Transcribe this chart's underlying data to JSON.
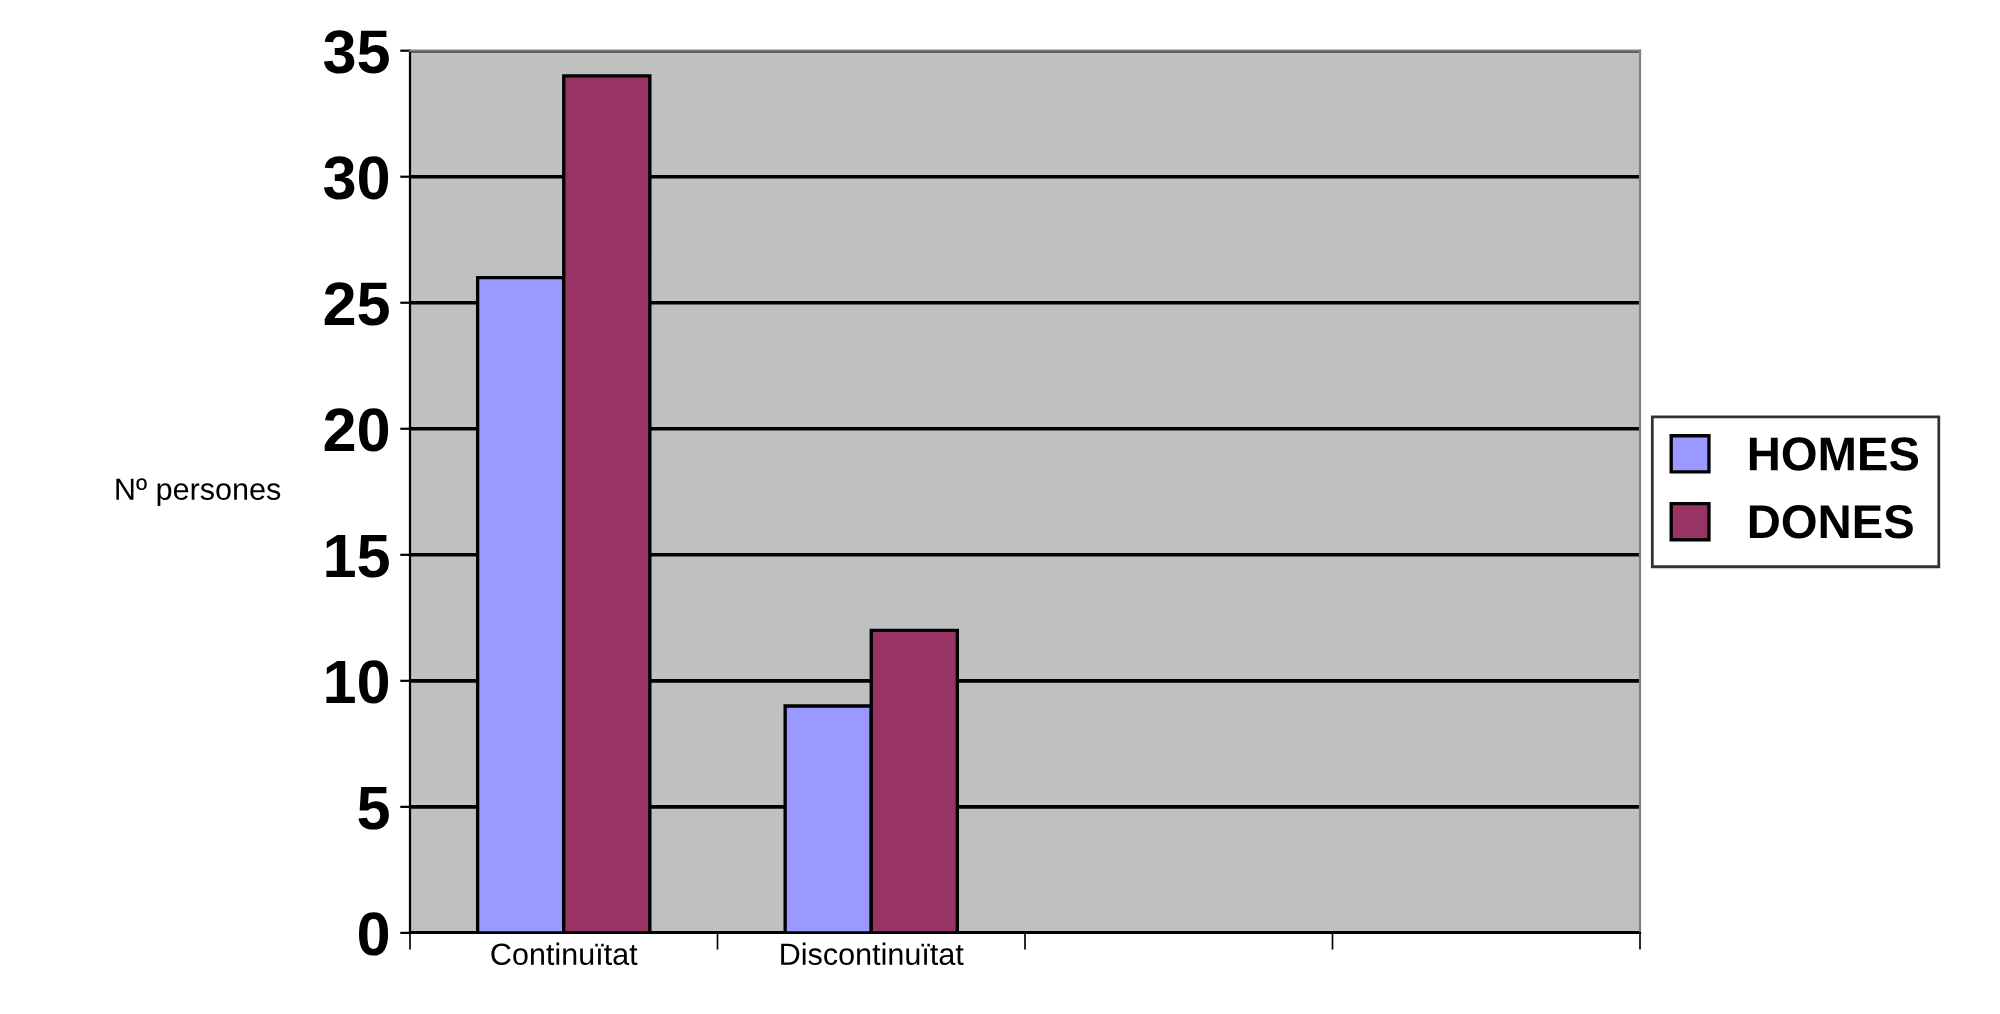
{
  "chart_data": {
    "type": "bar",
    "ylabel": "Nº persones",
    "categories": [
      "Continuïtat",
      "Discontinuïtat",
      null,
      null
    ],
    "series": [
      {
        "name": "HOMES",
        "color": "#9999ff",
        "values": [
          26,
          9,
          null,
          null
        ]
      },
      {
        "name": "DONES",
        "color": "#993366",
        "values": [
          34,
          12,
          null,
          null
        ]
      }
    ],
    "ylim": [
      0,
      35
    ],
    "yticks": [
      0,
      5,
      10,
      15,
      20,
      25,
      30,
      35
    ],
    "grid": "y",
    "legend": "right"
  }
}
